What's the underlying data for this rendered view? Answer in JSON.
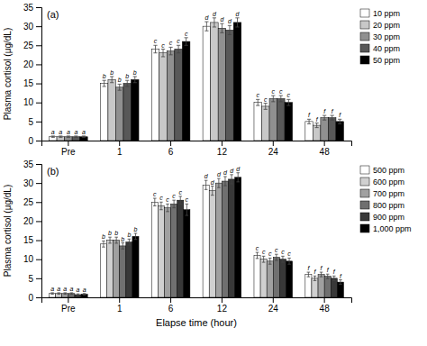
{
  "chart_data": [
    {
      "type": "bar",
      "title": "(a)",
      "y_label": "Plasma cortisol (μg/dL)",
      "categories": [
        "Pre",
        "1",
        "6",
        "12",
        "24",
        "48"
      ],
      "series": [
        {
          "name": "10 ppm",
          "color": "white",
          "values": [
            1.0,
            15.0,
            24.0,
            30.0,
            10.0,
            5.0
          ],
          "errors": [
            0.2,
            0.8,
            1.0,
            1.2,
            0.8,
            0.6
          ],
          "letters": [
            "a",
            "b",
            "c",
            "d",
            "c",
            "f"
          ]
        },
        {
          "name": "20 ppm",
          "color": "#c8c8c8",
          "values": [
            1.0,
            16.0,
            23.0,
            31.0,
            9.0,
            4.0
          ],
          "errors": [
            0.2,
            0.8,
            1.0,
            1.2,
            0.8,
            0.6
          ],
          "letters": [
            "a",
            "b",
            "c",
            "d",
            "c",
            "f"
          ]
        },
        {
          "name": "30 ppm",
          "color": "#909090",
          "values": [
            1.0,
            14.0,
            23.5,
            29.5,
            11.0,
            6.0
          ],
          "errors": [
            0.2,
            0.8,
            1.0,
            1.2,
            0.8,
            0.6
          ],
          "letters": [
            "a",
            "b",
            "c",
            "d",
            "c",
            "f"
          ]
        },
        {
          "name": "40 ppm",
          "color": "#585858",
          "values": [
            1.0,
            15.0,
            24.0,
            29.0,
            11.0,
            6.0
          ],
          "errors": [
            0.2,
            0.8,
            1.0,
            1.2,
            0.8,
            0.6
          ],
          "letters": [
            "a",
            "b",
            "c",
            "d",
            "c",
            "f"
          ]
        },
        {
          "name": "50 ppm",
          "color": "#000000",
          "values": [
            1.0,
            16.0,
            26.0,
            31.0,
            10.0,
            5.0
          ],
          "errors": [
            0.2,
            0.8,
            1.0,
            1.2,
            0.8,
            0.6
          ],
          "letters": [
            "a",
            "b",
            "c",
            "d",
            "c",
            "f"
          ]
        }
      ],
      "ylim": [
        0,
        35
      ],
      "yticks": [
        0,
        5,
        10,
        15,
        20,
        25,
        30,
        35
      ],
      "legend": "right"
    },
    {
      "type": "bar",
      "title": "(b)",
      "y_label": "Plasma cortisol (μg/dL)",
      "x_label": "Elapse time (hour)",
      "categories": [
        "Pre",
        "1",
        "6",
        "12",
        "24",
        "48"
      ],
      "series": [
        {
          "name": "500 ppm",
          "color": "white",
          "values": [
            1.0,
            14.0,
            25.0,
            29.5,
            11.0,
            6.0
          ],
          "errors": [
            0.2,
            0.8,
            1.0,
            1.2,
            0.8,
            0.6
          ],
          "letters": [
            "a",
            "b",
            "c",
            "d",
            "c",
            "f"
          ]
        },
        {
          "name": "600 ppm",
          "color": "#d0d0d0",
          "values": [
            1.0,
            15.0,
            24.0,
            28.0,
            10.0,
            5.0
          ],
          "errors": [
            0.2,
            0.8,
            1.0,
            1.2,
            0.8,
            0.6
          ],
          "letters": [
            "a",
            "b",
            "c",
            "d",
            "c",
            "f"
          ]
        },
        {
          "name": "700 ppm",
          "color": "#a0a0a0",
          "values": [
            1.0,
            15.0,
            23.5,
            30.0,
            9.5,
            6.0
          ],
          "errors": [
            0.2,
            0.8,
            1.0,
            1.2,
            0.8,
            0.6
          ],
          "letters": [
            "a",
            "b",
            "c",
            "d",
            "c",
            "f"
          ]
        },
        {
          "name": "800 ppm",
          "color": "#707070",
          "values": [
            1.0,
            13.5,
            24.5,
            30.5,
            10.5,
            5.5
          ],
          "errors": [
            0.2,
            0.8,
            1.0,
            1.2,
            0.8,
            0.6
          ],
          "letters": [
            "a",
            "b",
            "c",
            "d",
            "c",
            "f"
          ]
        },
        {
          "name": "900 ppm",
          "color": "#383838",
          "values": [
            0.7,
            14.5,
            25.5,
            31.0,
            10.0,
            5.0
          ],
          "errors": [
            0.2,
            0.8,
            1.0,
            1.2,
            0.8,
            0.6
          ],
          "letters": [
            "a",
            "b",
            "c",
            "d",
            "c",
            "f"
          ]
        },
        {
          "name": "1,000 ppm",
          "color": "#000000",
          "values": [
            0.8,
            16.0,
            23.0,
            31.5,
            9.5,
            4.0
          ],
          "errors": [
            0.2,
            0.8,
            1.5,
            1.2,
            0.8,
            0.6
          ],
          "letters": [
            "a",
            "b",
            "c",
            "d",
            "c",
            "f"
          ]
        }
      ],
      "ylim": [
        0,
        35
      ],
      "yticks": [
        0,
        5,
        10,
        15,
        20,
        25,
        30,
        35
      ],
      "legend": "right"
    }
  ]
}
